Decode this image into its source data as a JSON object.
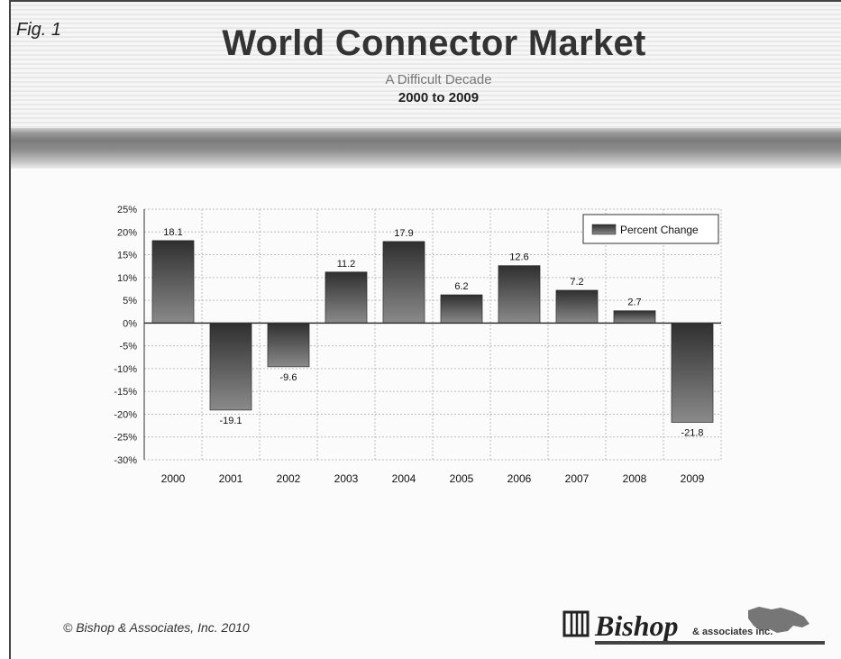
{
  "figure": {
    "fig_label": "Fig. 1",
    "title": "World Connector Market",
    "subtitle": "A Difficult Decade",
    "period": "2000 to 2009"
  },
  "chart_data": {
    "type": "bar",
    "categories": [
      "2000",
      "2001",
      "2002",
      "2003",
      "2004",
      "2005",
      "2006",
      "2007",
      "2008",
      "2009"
    ],
    "series": [
      {
        "name": "Percent Change",
        "values": [
          18.1,
          -19.1,
          -9.6,
          11.2,
          17.9,
          6.2,
          12.6,
          7.2,
          2.7,
          -21.8
        ],
        "labels": [
          "18.1",
          "-19.1",
          "-9.6",
          "11.2",
          "17.9",
          "6.2",
          "12.6",
          "7.2",
          "2.7",
          "-21.8"
        ]
      }
    ],
    "ylim": [
      -30,
      25
    ],
    "yticks": [
      25,
      20,
      15,
      10,
      5,
      0,
      -5,
      -10,
      -15,
      -20,
      -25,
      -30
    ],
    "ytick_labels": [
      "25%",
      "20%",
      "15%",
      "10%",
      "5%",
      "0%",
      "-5%",
      "-10%",
      "-15%",
      "-20%",
      "-25%",
      "-30%"
    ],
    "xlabel": "",
    "ylabel": "",
    "grid": true,
    "legend": "top-right"
  },
  "footer": {
    "copyright": "© Bishop & Associates, Inc. 2010",
    "logo_text": "Bishop",
    "logo_suffix": "& associates inc."
  },
  "colors": {
    "bar_top": "#2f2f2f",
    "bar_bottom": "#8a8a8a",
    "grid": "#bdbdbd",
    "axis": "#333333"
  }
}
